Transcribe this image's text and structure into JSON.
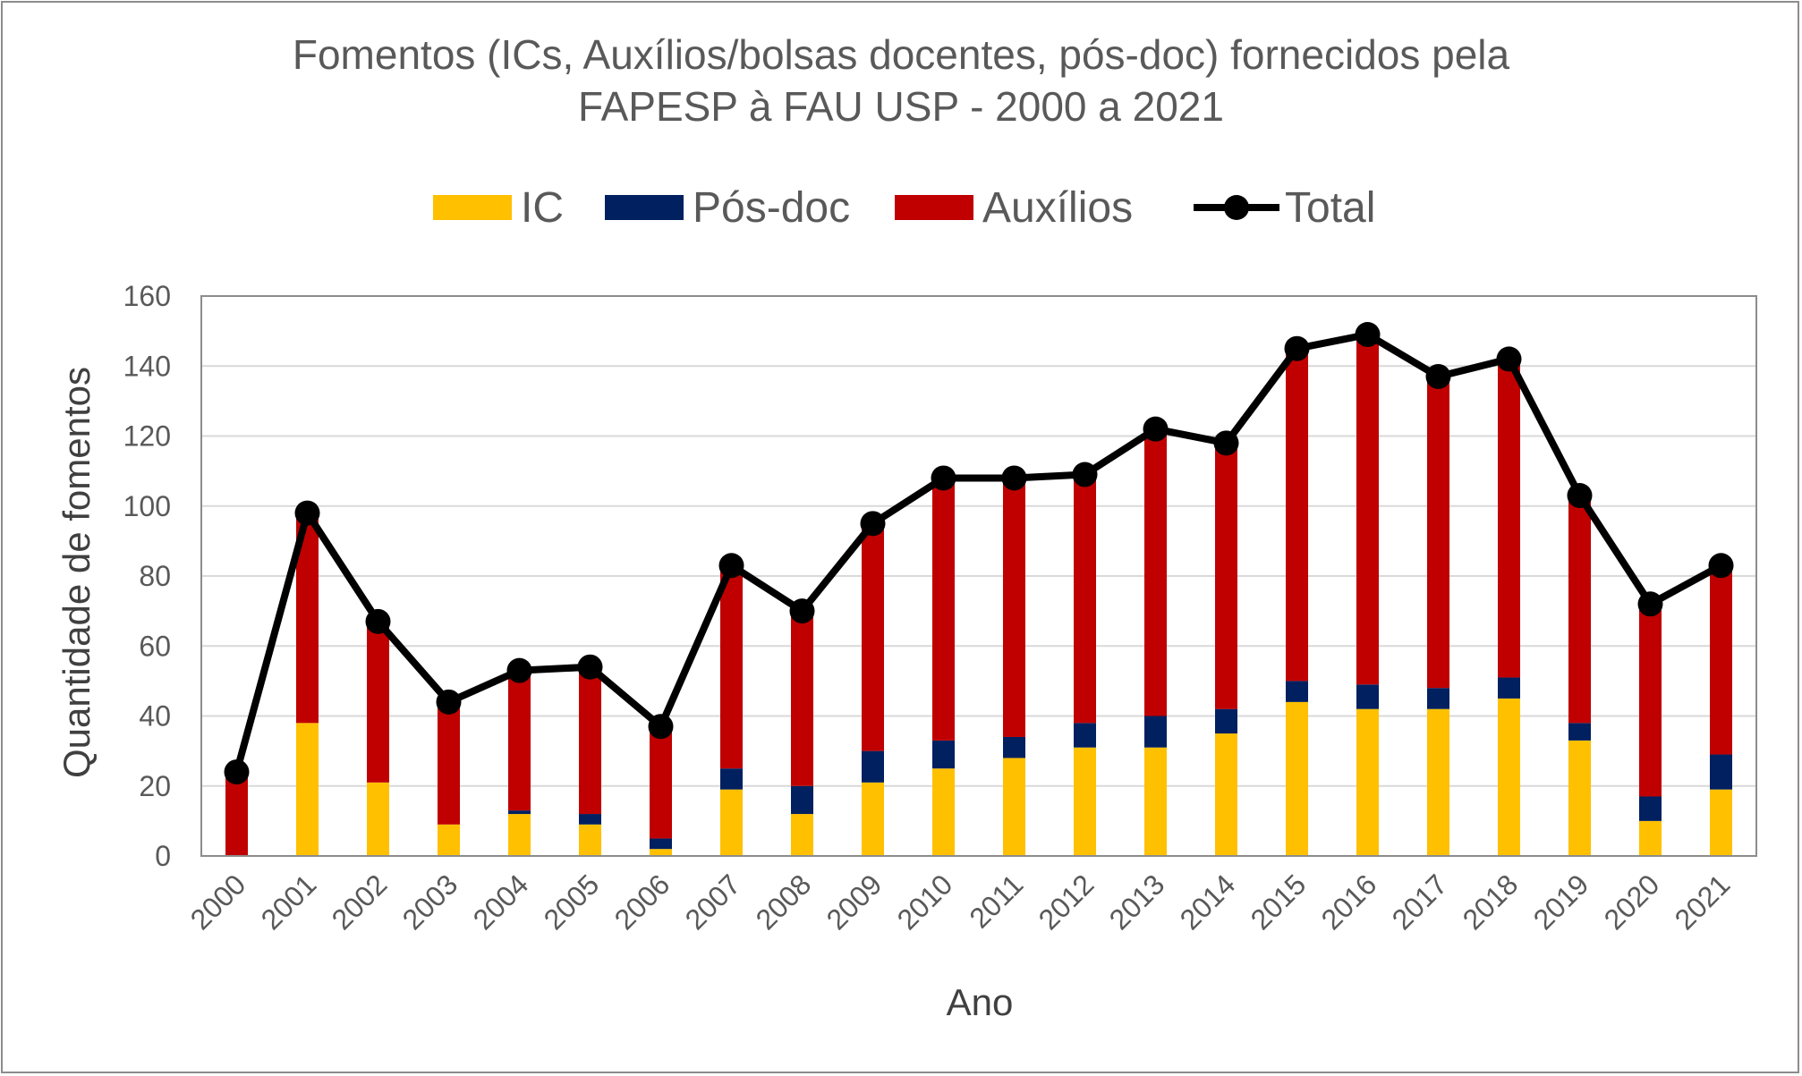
{
  "chart_data": {
    "type": "bar",
    "title_line1": "Fomentos (ICs, Auxílios/bolsas docentes, pós-doc) fornecidos pela",
    "title_line2": "FAPESP à FAU USP - 2000 a 2021",
    "xlabel": "Ano",
    "ylabel": "Quantidade de fomentos",
    "ylim": [
      0,
      160
    ],
    "yticks": [
      "0",
      "20",
      "40",
      "60",
      "80",
      "100",
      "120",
      "140",
      "160"
    ],
    "grid": true,
    "legend_position": "top",
    "categories": [
      "2000",
      "2001",
      "2002",
      "2003",
      "2004",
      "2005",
      "2006",
      "2007",
      "2008",
      "2009",
      "2010",
      "2011",
      "2012",
      "2013",
      "2014",
      "2015",
      "2016",
      "2017",
      "2018",
      "2019",
      "2020",
      "2021"
    ],
    "series": [
      {
        "name": "IC",
        "color": "#FFC000",
        "stacked": true,
        "values": [
          0,
          38,
          21,
          9,
          12,
          9,
          2,
          19,
          12,
          21,
          25,
          28,
          31,
          31,
          35,
          44,
          42,
          42,
          45,
          33,
          10,
          19
        ]
      },
      {
        "name": "Pós-doc",
        "color": "#002060",
        "stacked": true,
        "values": [
          0,
          0,
          0,
          0,
          1,
          3,
          3,
          6,
          8,
          9,
          8,
          6,
          7,
          9,
          7,
          6,
          7,
          6,
          6,
          5,
          7,
          10
        ]
      },
      {
        "name": "Auxílios",
        "color": "#C00000",
        "stacked": true,
        "values": [
          24,
          60,
          46,
          35,
          40,
          42,
          32,
          58,
          50,
          65,
          75,
          74,
          71,
          82,
          76,
          95,
          100,
          89,
          91,
          65,
          55,
          54
        ]
      },
      {
        "name": "Total",
        "color": "#000000",
        "type": "line",
        "values": [
          24,
          98,
          67,
          44,
          53,
          54,
          37,
          83,
          70,
          95,
          108,
          108,
          109,
          122,
          118,
          145,
          149,
          137,
          142,
          103,
          72,
          83
        ]
      }
    ]
  }
}
